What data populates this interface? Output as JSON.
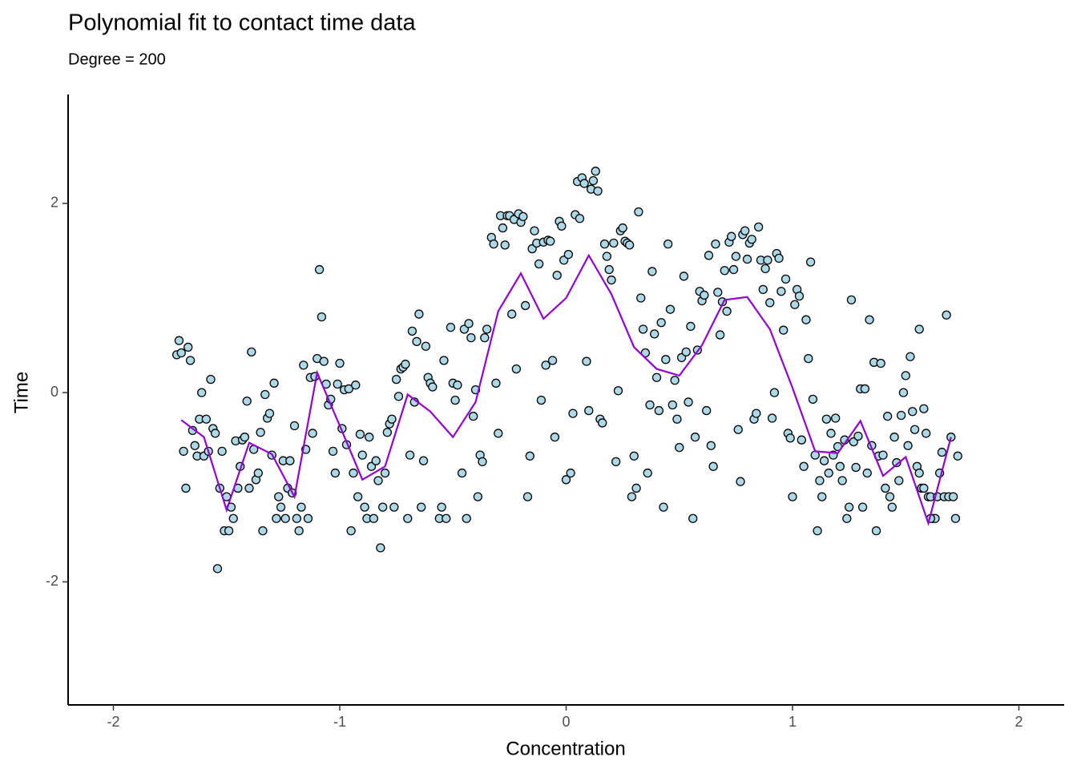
{
  "chart_data": {
    "type": "scatter",
    "title": "Polynomial fit to contact time data",
    "subtitle": "Degree = 200",
    "xlabel": "Concentration",
    "ylabel": "Time",
    "xlim": [
      -2.2,
      2.2
    ],
    "ylim": [
      -3.3,
      3.15
    ],
    "xticks": [
      -2,
      -1,
      0,
      1,
      2
    ],
    "yticks": [
      -2,
      0,
      2
    ],
    "grid": false,
    "points": {
      "color": "#add8e6",
      "edgecolor": "#000000",
      "x": [
        -1.72,
        -1.71,
        -1.7,
        -1.69,
        -1.68,
        -1.67,
        -1.66,
        -1.65,
        -1.64,
        -1.63,
        -1.62,
        -1.61,
        -1.6,
        -1.59,
        -1.58,
        -1.57,
        -1.56,
        -1.55,
        -1.54,
        -1.53,
        -1.52,
        -1.51,
        -1.5,
        -1.49,
        -1.48,
        -1.47,
        -1.46,
        -1.45,
        -1.44,
        -1.43,
        -1.42,
        -1.41,
        -1.4,
        -1.39,
        -1.38,
        -1.37,
        -1.36,
        -1.35,
        -1.34,
        -1.33,
        -1.32,
        -1.31,
        -1.3,
        -1.29,
        -1.28,
        -1.27,
        -1.26,
        -1.25,
        -1.24,
        -1.23,
        -1.22,
        -1.21,
        -1.2,
        -1.19,
        -1.18,
        -1.17,
        -1.16,
        -1.15,
        -1.14,
        -1.13,
        -1.12,
        -1.11,
        -1.1,
        -1.09,
        -1.08,
        -1.07,
        -1.06,
        -1.05,
        -1.04,
        -1.03,
        -1.02,
        -1.01,
        -1.0,
        -0.99,
        -0.98,
        -0.97,
        -0.96,
        -0.95,
        -0.94,
        -0.93,
        -0.92,
        -0.91,
        -0.9,
        -0.89,
        -0.88,
        -0.87,
        -0.86,
        -0.85,
        -0.84,
        -0.83,
        -0.82,
        -0.81,
        -0.8,
        -0.79,
        -0.78,
        -0.77,
        -0.76,
        -0.75,
        -0.74,
        -0.73,
        -0.72,
        -0.71,
        -0.7,
        -0.69,
        -0.68,
        -0.67,
        -0.66,
        -0.65,
        -0.64,
        -0.63,
        -0.62,
        -0.61,
        -0.6,
        -0.59,
        -0.56,
        -0.55,
        -0.54,
        -0.53,
        -0.51,
        -0.5,
        -0.49,
        -0.48,
        -0.46,
        -0.45,
        -0.44,
        -0.43,
        -0.42,
        -0.41,
        -0.4,
        -0.39,
        -0.38,
        -0.37,
        -0.36,
        -0.35,
        -0.33,
        -0.32,
        -0.31,
        -0.3,
        -0.29,
        -0.28,
        -0.27,
        -0.26,
        -0.25,
        -0.24,
        -0.23,
        -0.22,
        -0.21,
        -0.2,
        -0.19,
        -0.18,
        -0.17,
        -0.16,
        -0.15,
        -0.14,
        -0.13,
        -0.12,
        -0.11,
        -0.1,
        -0.09,
        -0.08,
        -0.07,
        -0.06,
        -0.05,
        -0.04,
        -0.03,
        -0.02,
        -0.01,
        0.0,
        0.01,
        0.02,
        0.03,
        0.04,
        0.05,
        0.06,
        0.07,
        0.08,
        0.09,
        0.1,
        0.11,
        0.12,
        0.13,
        0.14,
        0.15,
        0.16,
        0.17,
        0.18,
        0.19,
        0.2,
        0.21,
        0.22,
        0.23,
        0.24,
        0.25,
        0.26,
        0.27,
        0.28,
        0.29,
        0.3,
        0.31,
        0.32,
        0.33,
        0.34,
        0.35,
        0.36,
        0.37,
        0.38,
        0.39,
        0.4,
        0.41,
        0.42,
        0.43,
        0.44,
        0.45,
        0.46,
        0.47,
        0.48,
        0.49,
        0.5,
        0.51,
        0.52,
        0.53,
        0.54,
        0.55,
        0.56,
        0.57,
        0.58,
        0.59,
        0.6,
        0.61,
        0.62,
        0.63,
        0.64,
        0.65,
        0.66,
        0.67,
        0.68,
        0.69,
        0.7,
        0.71,
        0.72,
        0.73,
        0.74,
        0.75,
        0.76,
        0.77,
        0.78,
        0.79,
        0.8,
        0.81,
        0.82,
        0.83,
        0.84,
        0.85,
        0.86,
        0.87,
        0.88,
        0.89,
        0.9,
        0.91,
        0.92,
        0.93,
        0.94,
        0.95,
        0.96,
        0.97,
        0.98,
        0.99,
        1.0,
        1.01,
        1.02,
        1.03,
        1.04,
        1.05,
        1.06,
        1.07,
        1.08,
        1.09,
        1.1,
        1.11,
        1.12,
        1.13,
        1.14,
        1.15,
        1.16,
        1.17,
        1.18,
        1.19,
        1.2,
        1.21,
        1.22,
        1.23,
        1.24,
        1.25,
        1.26,
        1.27,
        1.28,
        1.29,
        1.3,
        1.31,
        1.32,
        1.33,
        1.34,
        1.35,
        1.36,
        1.37,
        1.38,
        1.39,
        1.4,
        1.41,
        1.42,
        1.43,
        1.44,
        1.45,
        1.46,
        1.47,
        1.48,
        1.49,
        1.5,
        1.51,
        1.52,
        1.53,
        1.54,
        1.55,
        1.56,
        1.57,
        1.58,
        1.58,
        1.56,
        1.59,
        1.6,
        1.61,
        1.62,
        1.63,
        1.61,
        1.64,
        1.65,
        1.66,
        1.67,
        1.68,
        1.69,
        1.7,
        1.71,
        1.72,
        1.73
      ],
      "y": [
        0.4,
        0.55,
        0.42,
        -0.62,
        -1.01,
        0.48,
        0.34,
        -0.4,
        -0.56,
        -0.67,
        -0.28,
        0.0,
        -0.67,
        -0.28,
        -0.62,
        0.14,
        -0.38,
        -0.43,
        -1.86,
        -1.01,
        -0.62,
        -1.46,
        -1.1,
        -1.46,
        -1.21,
        -1.33,
        -0.51,
        -1.01,
        -0.78,
        -0.5,
        -0.47,
        -0.09,
        -1.01,
        0.43,
        -0.6,
        -0.92,
        -0.85,
        -0.42,
        -1.46,
        -0.02,
        -0.27,
        -0.22,
        -0.66,
        0.1,
        -1.33,
        -1.1,
        -1.21,
        -0.72,
        -1.33,
        -1.01,
        -0.72,
        -1.06,
        -0.35,
        -1.33,
        -1.46,
        -1.21,
        0.29,
        -0.6,
        -1.33,
        0.16,
        -0.43,
        0.17,
        0.36,
        1.3,
        0.8,
        0.33,
        0.09,
        -0.13,
        -0.07,
        -0.62,
        -0.85,
        0.09,
        0.31,
        -0.38,
        0.03,
        -0.55,
        0.04,
        -1.46,
        -0.85,
        0.08,
        -1.1,
        -0.44,
        -0.66,
        -1.21,
        -1.33,
        -0.47,
        -0.78,
        -1.33,
        -0.72,
        -0.93,
        -1.64,
        -1.21,
        -0.85,
        -0.42,
        -0.33,
        -0.28,
        -1.21,
        0.14,
        -0.04,
        0.25,
        0.27,
        0.3,
        -1.33,
        -0.66,
        0.65,
        -0.1,
        0.54,
        0.83,
        -1.21,
        -0.72,
        0.49,
        0.16,
        0.1,
        0.06,
        -1.33,
        -1.21,
        0.34,
        -1.33,
        0.69,
        0.1,
        -0.08,
        0.08,
        -0.85,
        0.67,
        -1.33,
        0.73,
        0.58,
        -0.25,
        0.03,
        -1.1,
        -0.66,
        -0.73,
        0.58,
        0.67,
        1.64,
        1.57,
        0.1,
        -0.43,
        1.87,
        1.74,
        1.56,
        1.87,
        1.87,
        0.83,
        1.83,
        0.25,
        1.89,
        1.8,
        1.86,
        0.92,
        -1.1,
        -0.67,
        1.52,
        1.71,
        1.58,
        1.36,
        -0.08,
        1.59,
        0.29,
        1.61,
        1.6,
        0.34,
        -0.47,
        1.24,
        1.81,
        1.76,
        1.4,
        -0.92,
        1.46,
        -0.85,
        -0.22,
        1.88,
        2.23,
        1.84,
        2.27,
        2.21,
        0.33,
        -0.19,
        2.15,
        2.24,
        2.34,
        2.13,
        -0.28,
        -0.32,
        1.57,
        1.44,
        1.3,
        1.19,
        1.58,
        -0.73,
        0.02,
        1.71,
        1.74,
        1.6,
        1.58,
        1.56,
        -1.1,
        -0.67,
        -1.01,
        1.91,
        1.0,
        0.67,
        0.42,
        -0.85,
        -0.13,
        1.28,
        0.62,
        0.16,
        -0.19,
        0.74,
        -1.21,
        0.35,
        1.57,
        0.88,
        -0.13,
        0.13,
        -0.28,
        -0.58,
        0.37,
        1.23,
        0.43,
        -0.1,
        0.7,
        -1.33,
        -0.47,
        0.45,
        1.07,
        0.97,
        1.03,
        -0.19,
        1.45,
        -0.56,
        -0.78,
        1.57,
        1.06,
        0.61,
        0.96,
        1.29,
        0.86,
        1.59,
        1.65,
        1.3,
        1.44,
        -0.39,
        -0.94,
        1.67,
        1.71,
        1.41,
        1.58,
        1.62,
        -0.28,
        -0.22,
        1.75,
        1.4,
        1.09,
        1.31,
        1.4,
        0.95,
        -0.27,
        0.0,
        1.47,
        1.42,
        1.07,
        0.66,
        1.2,
        -0.43,
        -0.48,
        -1.1,
        0.93,
        1.09,
        1.02,
        -0.5,
        -0.78,
        0.77,
        0.36,
        1.38,
        -0.07,
        -0.66,
        -1.46,
        -0.93,
        -1.1,
        -0.72,
        -0.28,
        -0.85,
        -0.43,
        -0.66,
        -0.27,
        -0.57,
        -0.78,
        -0.93,
        -0.5,
        -1.33,
        -1.21,
        0.98,
        -0.52,
        -0.79,
        -0.46,
        0.04,
        -1.21,
        0.04,
        -0.85,
        0.77,
        -0.56,
        0.32,
        -1.46,
        -0.67,
        0.31,
        -0.66,
        -1.01,
        -0.25,
        -1.1,
        -1.21,
        -0.47,
        -0.74,
        -0.93,
        -0.24,
        0.0,
        0.18,
        -0.56,
        0.38,
        -0.2,
        -0.39,
        -0.78,
        -0.85,
        -1.01,
        -1.01,
        -0.17,
        0.67,
        -0.43,
        -1.1,
        -1.1,
        -1.33,
        -1.33,
        -1.33,
        -1.1,
        -0.85,
        -0.63,
        -1.1,
        0.82,
        -1.1,
        -0.47,
        -1.1,
        -1.33,
        -0.67
      ]
    },
    "fit": {
      "color": "#9400d3",
      "x": [
        -1.7,
        -1.6,
        -1.5,
        -1.4,
        -1.3,
        -1.2,
        -1.1,
        -1.0,
        -0.9,
        -0.8,
        -0.7,
        -0.6,
        -0.5,
        -0.4,
        -0.3,
        -0.2,
        -0.1,
        0.0,
        0.1,
        0.2,
        0.3,
        0.4,
        0.5,
        0.6,
        0.7,
        0.8,
        0.9,
        1.0,
        1.1,
        1.2,
        1.3,
        1.4,
        1.5,
        1.6,
        1.7
      ],
      "y": [
        -0.29,
        -0.47,
        -1.24,
        -0.53,
        -0.65,
        -1.1,
        0.21,
        -0.35,
        -0.92,
        -0.78,
        -0.02,
        -0.2,
        -0.47,
        -0.1,
        0.86,
        1.26,
        0.78,
        1.0,
        1.45,
        1.04,
        0.48,
        0.25,
        0.18,
        0.5,
        0.98,
        1.01,
        0.67,
        0.05,
        -0.62,
        -0.64,
        -0.3,
        -0.88,
        -0.68,
        -1.38,
        -0.47
      ]
    }
  }
}
